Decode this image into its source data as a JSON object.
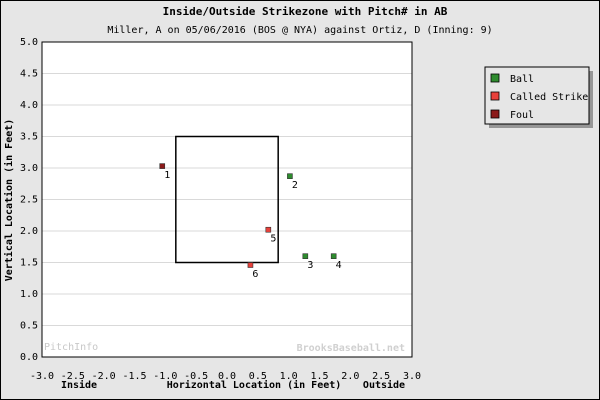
{
  "chart_data": {
    "type": "scatter",
    "title": "Inside/Outside Strikezone with Pitch# in AB",
    "subtitle": "Miller, A on 05/06/2016 (BOS @ NYA) against Ortiz, D (Inning: 9)",
    "xlabel": "Horizontal Location (in Feet)",
    "x_side_labels": {
      "left": "Inside",
      "right": "Outside"
    },
    "ylabel": "Vertical Location (in Feet)",
    "xlim": [
      -3.0,
      3.0
    ],
    "ylim": [
      0.0,
      5.0
    ],
    "x_ticks": [
      "-3.0",
      "-2.5",
      "-2.0",
      "-1.5",
      "-1.0",
      "-0.5",
      "0.0",
      "0.5",
      "1.0",
      "1.5",
      "2.0",
      "2.5",
      "3.0"
    ],
    "y_ticks": [
      "0.0",
      "0.5",
      "1.0",
      "1.5",
      "2.0",
      "2.5",
      "3.0",
      "3.5",
      "4.0",
      "4.5",
      "5.0"
    ],
    "grid": true,
    "strike_zone": {
      "x": [
        -0.83,
        0.83
      ],
      "y": [
        1.5,
        3.5
      ]
    },
    "legend_position": "right",
    "series": [
      {
        "name": "Ball",
        "color": "#2e8b2e"
      },
      {
        "name": "Called Strike",
        "color": "#e8413b"
      },
      {
        "name": "Foul",
        "color": "#8b1a1a"
      }
    ],
    "points": [
      {
        "pitch": "1",
        "x": -1.05,
        "y": 3.03,
        "type": "Foul"
      },
      {
        "pitch": "2",
        "x": 1.02,
        "y": 2.87,
        "type": "Ball"
      },
      {
        "pitch": "3",
        "x": 1.27,
        "y": 1.6,
        "type": "Ball"
      },
      {
        "pitch": "4",
        "x": 1.73,
        "y": 1.6,
        "type": "Ball"
      },
      {
        "pitch": "5",
        "x": 0.67,
        "y": 2.02,
        "type": "Called Strike"
      },
      {
        "pitch": "6",
        "x": 0.38,
        "y": 1.46,
        "type": "Called Strike"
      }
    ],
    "watermarks": {
      "left": "PitchInfo",
      "right": "BrooksBaseball.net"
    }
  }
}
